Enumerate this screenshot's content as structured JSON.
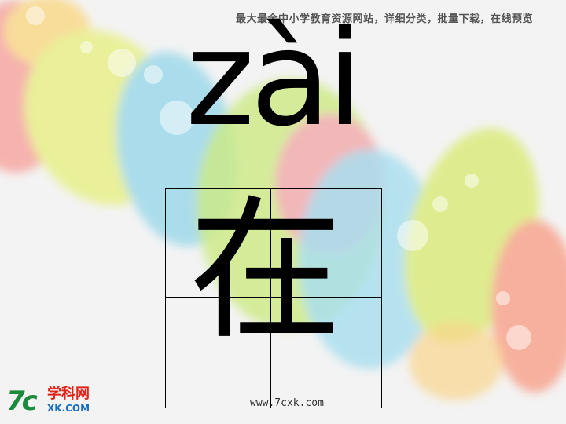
{
  "header": {
    "tagline": "最大最全中小学教育资源网站，详细分类，批量下载，在线预览"
  },
  "lesson": {
    "pinyin": "zài",
    "character": "在"
  },
  "footer": {
    "url": "www.7cxk.com"
  },
  "logo": {
    "mark": "7c",
    "name": "学科网",
    "domain": "XK.COM"
  }
}
